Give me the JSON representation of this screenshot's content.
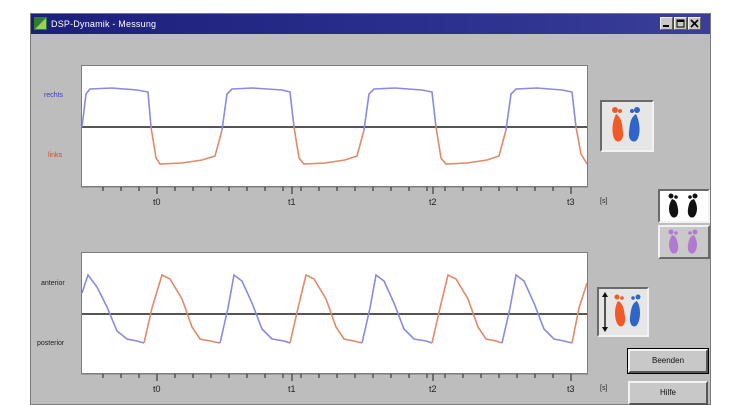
{
  "window": {
    "title": "DSP-Dynamik - Messung"
  },
  "colors": {
    "right": "#8a8ae0",
    "left": "#e08a6a",
    "baseline": "#555555",
    "title_bar": "#1c1f7a"
  },
  "top_chart": {
    "labels": {
      "upper": "rechts",
      "lower": "links"
    },
    "time_labels": [
      "t0",
      "t1",
      "t2",
      "t3"
    ],
    "unit": "[s]"
  },
  "bottom_chart": {
    "labels": {
      "upper": "anterior",
      "lower": "posterior"
    },
    "time_labels": [
      "t0",
      "t1",
      "t2",
      "t3"
    ],
    "unit": "[s]"
  },
  "side": {
    "top_icon": "left-right-feet-icon",
    "view_icons": [
      "black-feet-icon",
      "purple-feet-icon"
    ],
    "bottom_icon": "anterior-posterior-feet-icon"
  },
  "buttons": {
    "quit": "Beenden",
    "help": "Hilfe"
  }
}
